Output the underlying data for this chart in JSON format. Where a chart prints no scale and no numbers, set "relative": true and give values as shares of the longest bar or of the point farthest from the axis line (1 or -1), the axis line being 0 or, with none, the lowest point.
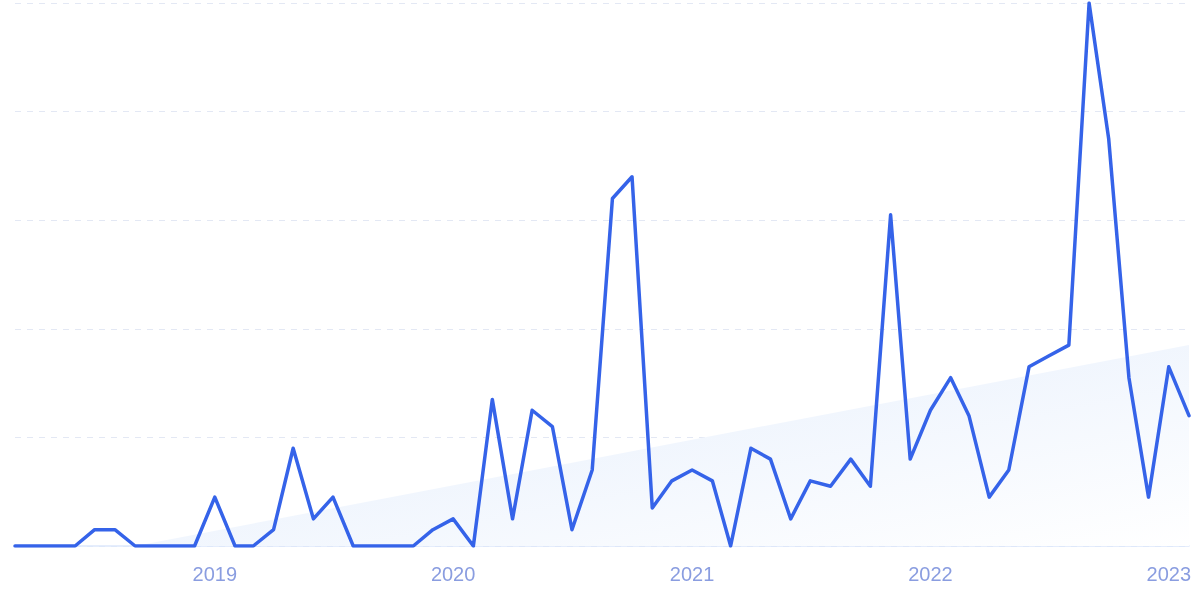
{
  "chart_data": {
    "type": "line",
    "relative": true,
    "grid": "y",
    "tick_labels": "x",
    "marker": "none",
    "line_style": "solid",
    "xlim": [
      "2018-03",
      "2023-02"
    ],
    "xticks": [
      "2019",
      "2020",
      "2021",
      "2022",
      "2023"
    ],
    "x": [
      "2018-03",
      "2018-04",
      "2018-05",
      "2018-06",
      "2018-07",
      "2018-08",
      "2018-09",
      "2018-10",
      "2018-11",
      "2018-12",
      "2019-01",
      "2019-02",
      "2019-03",
      "2019-04",
      "2019-05",
      "2019-06",
      "2019-07",
      "2019-08",
      "2019-09",
      "2019-10",
      "2019-11",
      "2019-12",
      "2020-01",
      "2020-02",
      "2020-03",
      "2020-04",
      "2020-05",
      "2020-06",
      "2020-07",
      "2020-08",
      "2020-09",
      "2020-10",
      "2020-11",
      "2020-12",
      "2021-01",
      "2021-02",
      "2021-03",
      "2021-04",
      "2021-05",
      "2021-06",
      "2021-07",
      "2021-08",
      "2021-09",
      "2021-10",
      "2021-11",
      "2021-12",
      "2022-01",
      "2022-02",
      "2022-03",
      "2022-04",
      "2022-05",
      "2022-06",
      "2022-07",
      "2022-08",
      "2022-09",
      "2022-10",
      "2022-11",
      "2022-12",
      "2023-01",
      "2023-02"
    ],
    "series": [
      {
        "type": "area",
        "x": [
          "2018-09",
          "2023-02"
        ],
        "values": [
          0,
          0.37
        ],
        "color": "#e3edfc"
      },
      {
        "color": "#3563e9",
        "values": [
          0,
          0,
          0,
          0,
          0.03,
          0.03,
          0,
          0,
          0,
          0,
          0.09,
          0,
          0,
          0.03,
          0.18,
          0.05,
          0.09,
          0,
          0,
          0,
          0,
          0.03,
          0.05,
          0,
          0.27,
          0.05,
          0.25,
          0.22,
          0.03,
          0.14,
          0.64,
          0.68,
          0.07,
          0.12,
          0.14,
          0.12,
          0,
          0.18,
          0.16,
          0.05,
          0.12,
          0.11,
          0.16,
          0.11,
          0.61,
          0.16,
          0.25,
          0.31,
          0.24,
          0.09,
          0.14,
          0.33,
          0.35,
          0.37,
          1,
          0.75,
          0.31,
          0.09,
          0.33,
          0.24
        ]
      }
    ]
  }
}
